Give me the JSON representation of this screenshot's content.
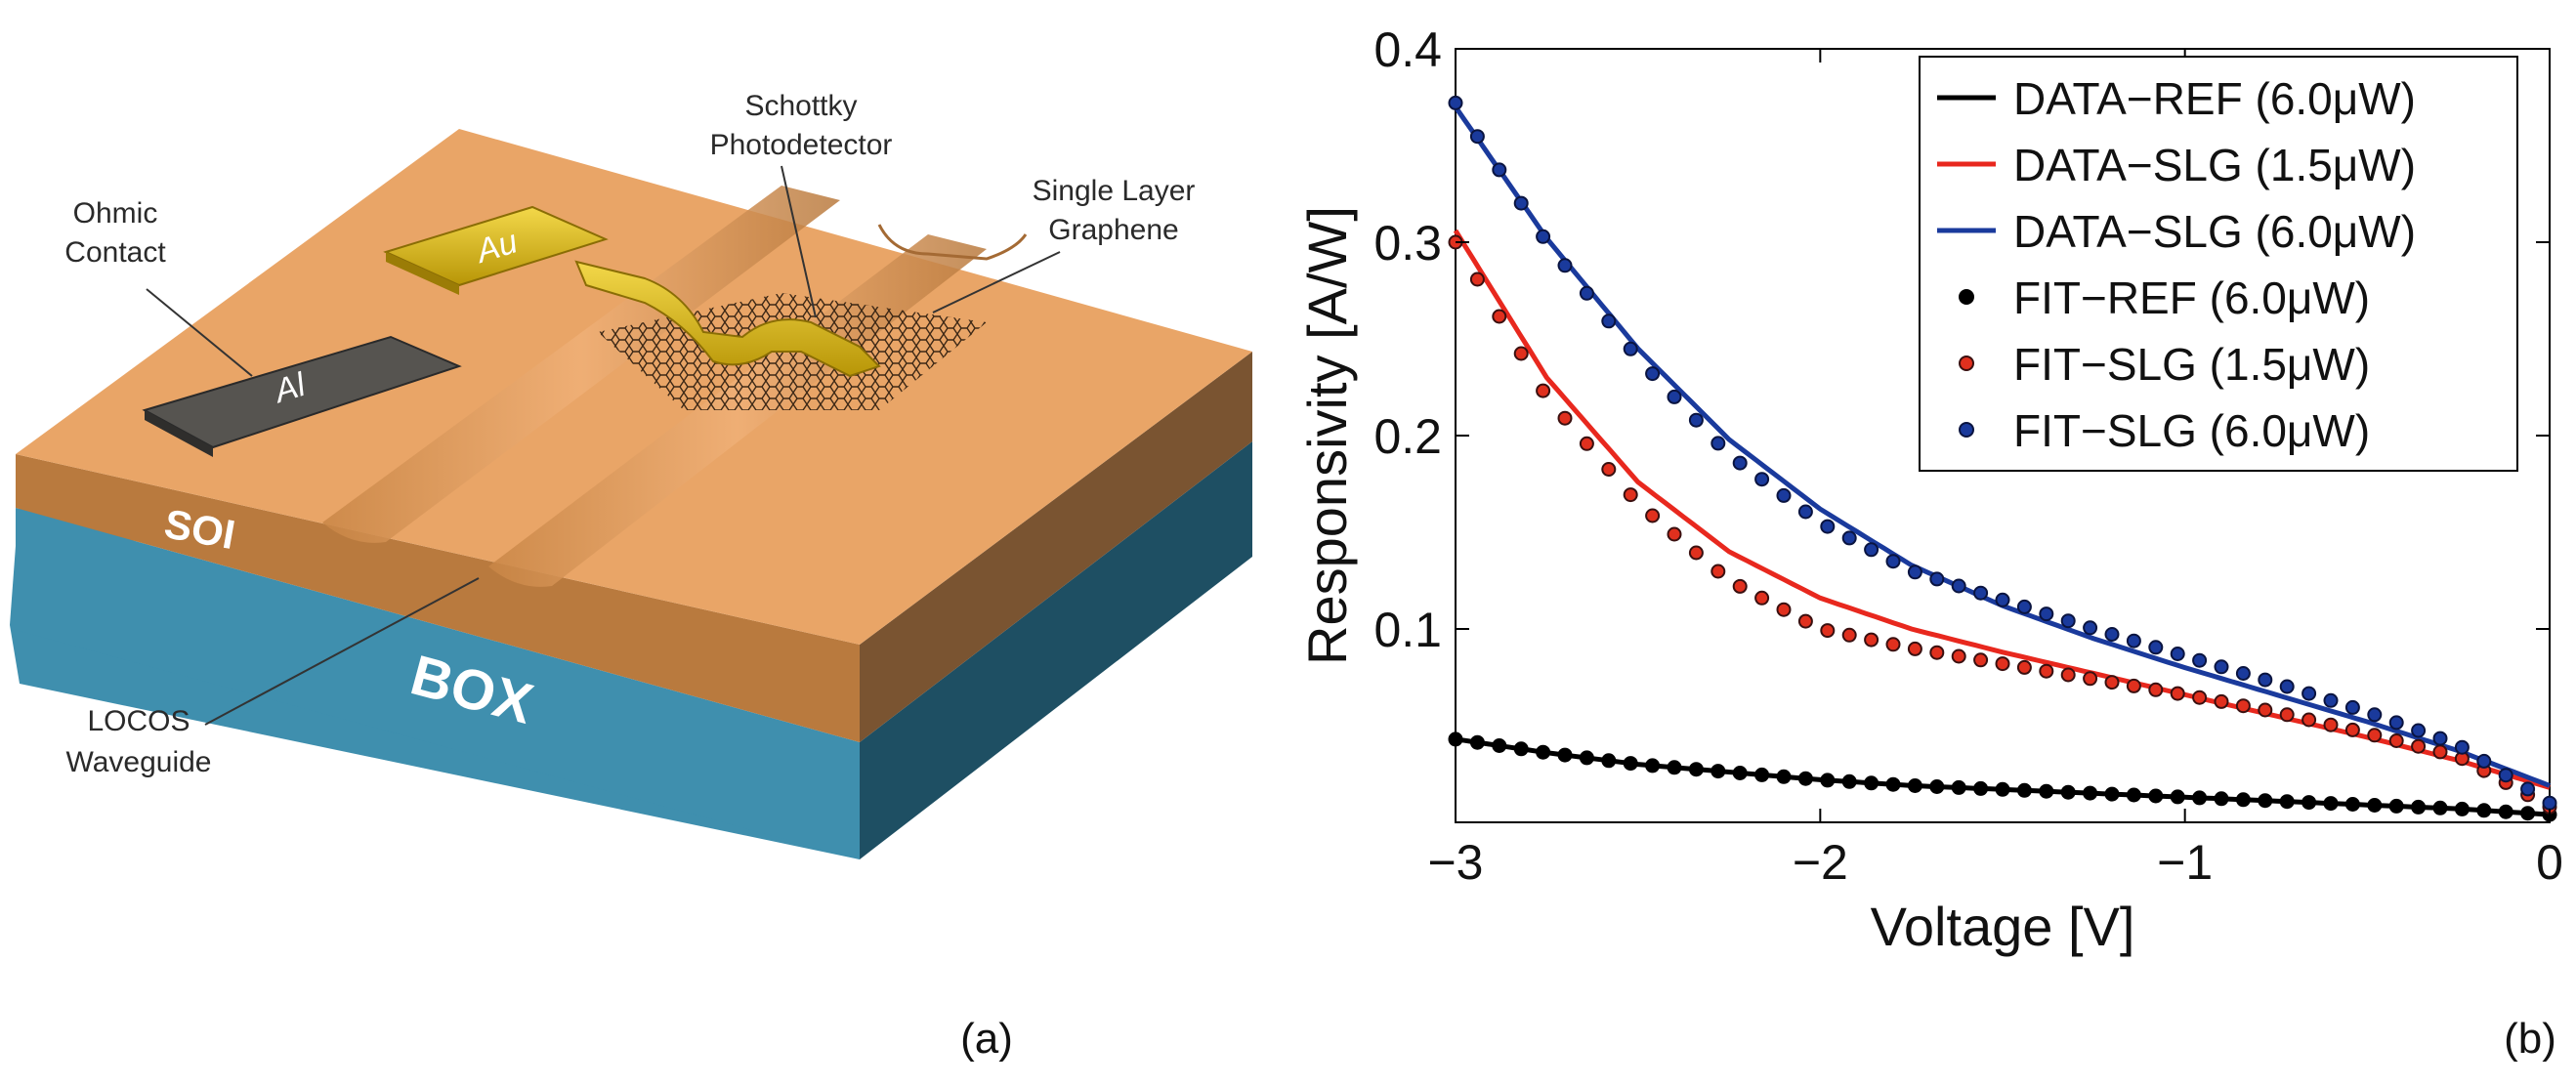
{
  "panel_a": {
    "letter": "(a)",
    "labels": {
      "ohmic_1": "Ohmic",
      "ohmic_2": "Contact",
      "schottky_1": "Schottky",
      "schottky_2": "Photodetector",
      "graphene_1": "Single Layer",
      "graphene_2": "Graphene",
      "soi": "SOI",
      "box": "BOX",
      "locos_1": "LOCOS",
      "locos_2": "Waveguide",
      "au": "Au",
      "al": "Al"
    },
    "colors": {
      "soi_top": "#e9a567",
      "soi_side": "#c98646",
      "soi_front": "#b97a3e",
      "box_front": "#3f8fae",
      "box_side": "#1e4f63",
      "au": "#d8b70c",
      "al": "#565450"
    }
  },
  "panel_b": {
    "letter": "(b)"
  },
  "chart_data": {
    "type": "line",
    "title": "",
    "xlabel": "Voltage [V]",
    "ylabel": "Responsivity [A/W]",
    "xlim": [
      -3,
      0
    ],
    "ylim": [
      0,
      0.4
    ],
    "xticks": [
      -3,
      -2,
      -1,
      0
    ],
    "xtick_labels": [
      "−3",
      "−2",
      "−1",
      "0"
    ],
    "yticks": [
      0.1,
      0.2,
      0.3,
      0.4
    ],
    "ytick_labels": [
      "0.1",
      "0.2",
      "0.3",
      "0.4"
    ],
    "grid": false,
    "legend_position": "top-right",
    "series": [
      {
        "name": "DATA−REF (6.0μW)",
        "kind": "line",
        "color": "#000000",
        "x": [
          -3.0,
          -2.75,
          -2.5,
          -2.25,
          -2.0,
          -1.75,
          -1.5,
          -1.25,
          -1.0,
          -0.75,
          -0.5,
          -0.25,
          0.0
        ],
        "y": [
          0.043,
          0.036,
          0.03,
          0.026,
          0.022,
          0.019,
          0.017,
          0.015,
          0.013,
          0.011,
          0.009,
          0.007,
          0.004
        ]
      },
      {
        "name": "DATA−SLG (1.5μW)",
        "kind": "line",
        "color": "#e8281e",
        "x": [
          -3.0,
          -2.75,
          -2.5,
          -2.25,
          -2.0,
          -1.75,
          -1.5,
          -1.25,
          -1.0,
          -0.75,
          -0.5,
          -0.25,
          0.0
        ],
        "y": [
          0.306,
          0.23,
          0.176,
          0.14,
          0.116,
          0.1,
          0.088,
          0.077,
          0.066,
          0.055,
          0.044,
          0.032,
          0.018
        ]
      },
      {
        "name": "DATA−SLG (6.0μW)",
        "kind": "line",
        "color": "#1a3a9c",
        "x": [
          -3.0,
          -2.75,
          -2.5,
          -2.25,
          -2.0,
          -1.75,
          -1.5,
          -1.25,
          -1.0,
          -0.75,
          -0.5,
          -0.25,
          0.0
        ],
        "y": [
          0.37,
          0.302,
          0.245,
          0.198,
          0.162,
          0.133,
          0.112,
          0.095,
          0.08,
          0.066,
          0.052,
          0.037,
          0.019
        ]
      },
      {
        "name": "FIT−REF (6.0μW)",
        "kind": "points",
        "color": "#000000",
        "edge": "#000000",
        "x": [
          -3.0,
          -2.75,
          -2.5,
          -2.25,
          -2.0,
          -1.75,
          -1.5,
          -1.25,
          -1.0,
          -0.75,
          -0.5,
          -0.25,
          0.0
        ],
        "y": [
          0.043,
          0.036,
          0.03,
          0.026,
          0.022,
          0.019,
          0.017,
          0.015,
          0.013,
          0.011,
          0.009,
          0.007,
          0.004
        ]
      },
      {
        "name": "FIT−SLG (1.5μW)",
        "kind": "points",
        "color": "#e0301e",
        "edge": "#3a1010",
        "x": [
          -3.0,
          -2.75,
          -2.5,
          -2.25,
          -2.0,
          -1.75,
          -1.5,
          -1.25,
          -1.0,
          -0.75,
          -0.5,
          -0.25,
          0.0
        ],
        "y": [
          0.3,
          0.22,
          0.165,
          0.125,
          0.1,
          0.09,
          0.082,
          0.074,
          0.066,
          0.057,
          0.046,
          0.034,
          0.008
        ]
      },
      {
        "name": "FIT−SLG (6.0μW)",
        "kind": "points",
        "color": "#1a3a9c",
        "edge": "#0a1440",
        "x": [
          -3.0,
          -2.75,
          -2.5,
          -2.25,
          -2.0,
          -1.75,
          -1.5,
          -1.25,
          -1.0,
          -0.75,
          -0.5,
          -0.25,
          0.0
        ],
        "y": [
          0.372,
          0.3,
          0.24,
          0.19,
          0.155,
          0.13,
          0.115,
          0.1,
          0.086,
          0.072,
          0.057,
          0.04,
          0.01
        ]
      }
    ]
  }
}
